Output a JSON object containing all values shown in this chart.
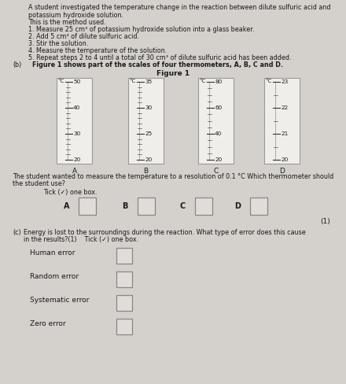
{
  "bg_color": "#d4d0cb",
  "title_text": "A student investigated the temperature change in the reaction between dilute sulfuric acid and\npotassium hydroxide solution.",
  "method_title": "This is the method used.",
  "method_steps": [
    "1. Measure 25 cm³ of potassium hydroxide solution into a glass beaker.",
    "2. Add 5 cm³ of dilute sulfuric acid.",
    "3. Stir the solution.",
    "4. Measure the temperature of the solution.",
    "5. Repeat steps 2 to 4 until a total of 30 cm³ of dilute sulfuric acid has been added."
  ],
  "b_label_prefix": "(b)",
  "b_label_body": "    Figure 1 shows part of the scales of four thermometers, A, B, C and D.",
  "figure_title": "Figure 1",
  "thermometers": [
    {
      "label": "A",
      "ticks_major": [
        20,
        30,
        40,
        50
      ],
      "minor_count": 5,
      "unit": "°C"
    },
    {
      "label": "B",
      "ticks_major": [
        20,
        25,
        30,
        35
      ],
      "minor_count": 5,
      "unit": "°C"
    },
    {
      "label": "C",
      "ticks_major": [
        20,
        40,
        60,
        80
      ],
      "minor_count": 4,
      "unit": "°C"
    },
    {
      "label": "D",
      "ticks_major": [
        20,
        21,
        22,
        23
      ],
      "minor_count": 2,
      "unit": "°C"
    }
  ],
  "question_text1": "The student wanted to measure the temperature to a resolution of 0.1 °C Which thermometer should",
  "question_text2": "the student use?",
  "tick_instruction": "Tick (✓) one box.",
  "abcd_labels": [
    "A",
    "B",
    "C",
    "D"
  ],
  "mark": "(1)",
  "c_prefix": "(c)",
  "c_body1": "Energy is lost to the surroundings during the reaction. What type of error does this cause",
  "c_body2": "in the results?(1)    Tick (✓) one box.",
  "error_options": [
    "Human error",
    "Random error",
    "Systematic error",
    "Zero error"
  ],
  "text_color": "#1a1a1a",
  "therm_border": "#999999",
  "therm_fill": "#f0eeeb",
  "box_face": "#e0ddd8",
  "box_edge": "#888888"
}
